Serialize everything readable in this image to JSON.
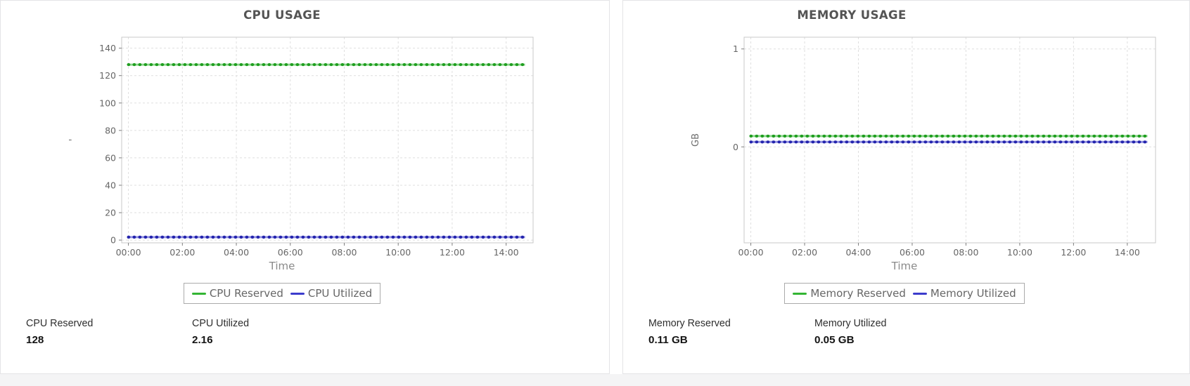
{
  "page": {
    "background": "#f4f4f5",
    "card_background": "#ffffff",
    "card_border": "#e4e4e6"
  },
  "panels": [
    {
      "title": "CPU USAGE",
      "stats": [
        {
          "label": "CPU Reserved",
          "value": "128"
        },
        {
          "label": "CPU Utilized",
          "value": "2.16"
        }
      ]
    },
    {
      "title": "MEMORY USAGE",
      "stats": [
        {
          "label": "Memory Reserved",
          "value": "0.11 GB"
        },
        {
          "label": "Memory Utilized",
          "value": "0.05 GB"
        }
      ]
    }
  ],
  "chart_data": [
    {
      "type": "line",
      "title": "CPU USAGE",
      "xlabel": "Time",
      "ylabel": "'",
      "x_tick_labels": [
        "00:00",
        "02:00",
        "04:00",
        "06:00",
        "08:00",
        "10:00",
        "12:00",
        "14:00"
      ],
      "x_tick_hours": [
        0,
        2,
        4,
        6,
        8,
        10,
        12,
        14
      ],
      "xlim_hours": [
        -0.25,
        15.0
      ],
      "ylim": [
        -2,
        148
      ],
      "y_ticks": [
        0,
        20,
        40,
        60,
        80,
        100,
        120,
        140
      ],
      "grid": "dashed",
      "legend_position": "bottom",
      "x_data_range_hours": [
        0,
        14.7
      ],
      "series": [
        {
          "name": "CPU Reserved",
          "y_constant": 128,
          "color": "#33b533",
          "marker_color": "#1f9e1f"
        },
        {
          "name": "CPU Utilized",
          "y_constant": 2.16,
          "color": "#3c3ccc",
          "marker_color": "#2424ad"
        }
      ]
    },
    {
      "type": "line",
      "title": "MEMORY USAGE",
      "xlabel": "Time",
      "ylabel": "GB",
      "x_tick_labels": [
        "00:00",
        "02:00",
        "04:00",
        "06:00",
        "08:00",
        "10:00",
        "12:00",
        "14:00"
      ],
      "x_tick_hours": [
        0,
        2,
        4,
        6,
        8,
        10,
        12,
        14
      ],
      "xlim_hours": [
        -0.25,
        15.05
      ],
      "ylim": [
        -0.98,
        1.12
      ],
      "y_ticks": [
        0,
        1
      ],
      "grid": "dashed",
      "legend_position": "bottom",
      "x_data_range_hours": [
        0,
        14.75
      ],
      "series": [
        {
          "name": "Memory Reserved",
          "y_constant": 0.11,
          "color": "#33b533",
          "marker_color": "#1f9e1f"
        },
        {
          "name": "Memory Utilized",
          "y_constant": 0.05,
          "color": "#3c3ccc",
          "marker_color": "#2424ad"
        }
      ]
    }
  ]
}
